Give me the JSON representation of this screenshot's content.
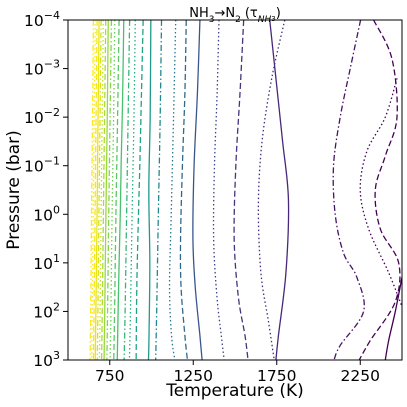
{
  "chart_data": {
    "type": "line",
    "title": "NH3→N2 (τNH3)",
    "title_parts": {
      "a": "NH",
      "a_sub": "3",
      "arrow": "→",
      "b": "N",
      "b_sub": "2",
      "paren_open": "(τ",
      "tau_sub": "NH",
      "tau_sub_sub": "3",
      "paren_close": ")"
    },
    "xlabel": "Temperature (K)",
    "ylabel": "Pressure (bar)",
    "xlim": [
      500,
      2500
    ],
    "ylim_log10": [
      3,
      -4
    ],
    "y_scale": "log",
    "y_inverted": true,
    "grid": false,
    "x_tick_values": [
      750,
      1250,
      1750,
      2250
    ],
    "x_tick_labels": [
      "750",
      "1250",
      "1750",
      "2250"
    ],
    "y_ticks": [
      {
        "base": "10",
        "exp": "−4",
        "log": -4
      },
      {
        "base": "10",
        "exp": "−3",
        "log": -3
      },
      {
        "base": "10",
        "exp": "−2",
        "log": -2
      },
      {
        "base": "10",
        "exp": "−1",
        "log": -1
      },
      {
        "base": "10",
        "exp": "0",
        "log": 0
      },
      {
        "base": "10",
        "exp": "1",
        "log": 1
      },
      {
        "base": "10",
        "exp": "2",
        "log": 2
      },
      {
        "base": "10",
        "exp": "3",
        "log": 3
      }
    ],
    "series": [
      {
        "color": "#fde725",
        "dash": "dashdot",
        "points": [
          [
            652,
            -4
          ],
          [
            647,
            -2
          ],
          [
            641,
            0
          ],
          [
            636,
            2
          ],
          [
            632,
            3
          ]
        ]
      },
      {
        "color": "#fde725",
        "dash": "dotted",
        "points": [
          [
            663,
            -4
          ],
          [
            657,
            -2
          ],
          [
            651,
            0
          ],
          [
            645,
            2
          ],
          [
            641,
            3
          ]
        ]
      },
      {
        "color": "#f6e620",
        "dash": "dashed",
        "points": [
          [
            674,
            -4
          ],
          [
            668,
            -2
          ],
          [
            662,
            0
          ],
          [
            656,
            2
          ],
          [
            652,
            3
          ]
        ]
      },
      {
        "color": "#e8e419",
        "dash": "solid",
        "points": [
          [
            686,
            -4
          ],
          [
            680,
            -2
          ],
          [
            674,
            0
          ],
          [
            667,
            2
          ],
          [
            663,
            3
          ]
        ]
      },
      {
        "color": "#d5e21a",
        "dash": "dashdot",
        "points": [
          [
            698,
            -4
          ],
          [
            692,
            -2
          ],
          [
            685,
            0
          ],
          [
            679,
            2
          ],
          [
            675,
            3
          ]
        ]
      },
      {
        "color": "#c0df25",
        "dash": "dotted",
        "points": [
          [
            711,
            -4
          ],
          [
            705,
            -2
          ],
          [
            698,
            0
          ],
          [
            692,
            2
          ],
          [
            688,
            3
          ]
        ]
      },
      {
        "color": "#addc30",
        "dash": "dashed",
        "points": [
          [
            726,
            -4
          ],
          [
            719,
            -2
          ],
          [
            712,
            0
          ],
          [
            705,
            2
          ],
          [
            701,
            3
          ]
        ]
      },
      {
        "color": "#98d83e",
        "dash": "solid",
        "points": [
          [
            741,
            -4
          ],
          [
            735,
            -2
          ],
          [
            727,
            0
          ],
          [
            720,
            2
          ],
          [
            716,
            3
          ]
        ]
      },
      {
        "color": "#84d44b",
        "dash": "dashdot",
        "points": [
          [
            760,
            -4
          ],
          [
            752,
            -2
          ],
          [
            744,
            0
          ],
          [
            737,
            2
          ],
          [
            733,
            3
          ]
        ]
      },
      {
        "color": "#6ece58",
        "dash": "dotted",
        "points": [
          [
            780,
            -4
          ],
          [
            773,
            -2
          ],
          [
            764,
            0
          ],
          [
            757,
            2
          ],
          [
            752,
            3
          ]
        ]
      },
      {
        "color": "#5ac864",
        "dash": "dashed",
        "points": [
          [
            806,
            -4
          ],
          [
            797,
            -2
          ],
          [
            787,
            0
          ],
          [
            779,
            2
          ],
          [
            774,
            3
          ]
        ]
      },
      {
        "color": "#48c16e",
        "dash": "solid",
        "points": [
          [
            834,
            -4
          ],
          [
            826,
            -2.2
          ],
          [
            818,
            -1
          ],
          [
            813,
            0
          ],
          [
            806,
            1
          ],
          [
            800,
            2
          ],
          [
            795,
            3
          ]
        ]
      },
      {
        "color": "#35b779",
        "dash": "dashdot",
        "points": [
          [
            869,
            -4
          ],
          [
            860,
            -2
          ],
          [
            851,
            0
          ],
          [
            842,
            2
          ],
          [
            836,
            3
          ]
        ]
      },
      {
        "color": "#28ae80",
        "dash": "dotted",
        "points": [
          [
            903,
            -4
          ],
          [
            895,
            -2
          ],
          [
            884,
            0
          ],
          [
            874,
            2
          ],
          [
            868,
            3
          ]
        ]
      },
      {
        "color": "#20a486",
        "dash": "dashed",
        "points": [
          [
            950,
            -4
          ],
          [
            940,
            -2.5
          ],
          [
            930,
            -1
          ],
          [
            922,
            0
          ],
          [
            912,
            1.5
          ],
          [
            908,
            3
          ]
        ]
      },
      {
        "color": "#1f9a8a",
        "dash": "solid",
        "points": [
          [
            996,
            -4
          ],
          [
            992,
            -2
          ],
          [
            984,
            -0.5
          ],
          [
            990,
            1
          ],
          [
            985,
            2.5
          ],
          [
            982,
            3
          ]
        ]
      },
      {
        "color": "#23898e",
        "dash": "dashdot",
        "points": [
          [
            1060,
            -4
          ],
          [
            1052,
            -2
          ],
          [
            1041,
            0
          ],
          [
            1031,
            2
          ],
          [
            1025,
            3
          ]
        ]
      },
      {
        "color": "#2a788e",
        "dash": "dotted",
        "points": [
          [
            1145,
            -4
          ],
          [
            1132,
            -2
          ],
          [
            1118,
            0
          ],
          [
            1108,
            1.5
          ],
          [
            1120,
            2.5
          ],
          [
            1140,
            3
          ]
        ]
      },
      {
        "color": "#31688e",
        "dash": "dashed",
        "points": [
          [
            1208,
            -4
          ],
          [
            1200,
            -2.5
          ],
          [
            1185,
            -1
          ],
          [
            1174,
            0.5
          ],
          [
            1177,
            1.5
          ],
          [
            1200,
            2.5
          ],
          [
            1215,
            3
          ]
        ]
      },
      {
        "color": "#39568c",
        "dash": "solid",
        "points": [
          [
            1290,
            -4
          ],
          [
            1275,
            -2.5
          ],
          [
            1255,
            -1
          ],
          [
            1248,
            0.5
          ],
          [
            1262,
            1.5
          ],
          [
            1290,
            2.5
          ],
          [
            1303,
            3
          ]
        ]
      },
      {
        "color": "#414487",
        "dash": "dotted",
        "points": [
          [
            1404,
            -4
          ],
          [
            1393,
            -2.5
          ],
          [
            1377,
            -1
          ],
          [
            1372,
            0.5
          ],
          [
            1392,
            1.7
          ],
          [
            1418,
            2.5
          ],
          [
            1435,
            3
          ]
        ]
      },
      {
        "color": "#46327e",
        "dash": "dashed",
        "points": [
          [
            1552,
            -4
          ],
          [
            1530,
            -2.5
          ],
          [
            1505,
            -1
          ],
          [
            1495,
            0.5
          ],
          [
            1520,
            1.7
          ],
          [
            1560,
            2.5
          ],
          [
            1578,
            3
          ]
        ]
      },
      {
        "color": "#472d7b",
        "dash": "dotted",
        "points": [
          [
            1798,
            -4
          ],
          [
            1720,
            -2.8
          ],
          [
            1662,
            -1.5
          ],
          [
            1640,
            -0.2
          ],
          [
            1655,
            1.2
          ],
          [
            1700,
            2.2
          ],
          [
            1735,
            3
          ]
        ]
      },
      {
        "color": "#482878",
        "dash": "solid",
        "points": [
          [
            1708,
            -4
          ],
          [
            1745,
            -2.8
          ],
          [
            1785,
            -1.5
          ],
          [
            1820,
            -0.3
          ],
          [
            1805,
            1.2
          ],
          [
            1760,
            2.5
          ],
          [
            1745,
            3
          ]
        ]
      },
      {
        "color": "#471365",
        "dash": "dashdot",
        "points": [
          [
            2252,
            -4
          ],
          [
            2190,
            -3
          ],
          [
            2130,
            -2
          ],
          [
            2090,
            -1
          ],
          [
            2100,
            0
          ],
          [
            2150,
            0.8
          ],
          [
            2230,
            1.3
          ],
          [
            2270,
            2
          ],
          [
            2130,
            2.7
          ],
          [
            2093,
            3
          ]
        ]
      },
      {
        "color": "#440154",
        "dash": "dashed",
        "points": [
          [
            2330,
            -4
          ],
          [
            2440,
            -3.2
          ],
          [
            2470,
            -2
          ],
          [
            2400,
            -1.2
          ],
          [
            2340,
            -0.5
          ],
          [
            2370,
            0.3
          ],
          [
            2480,
            1
          ],
          [
            2460,
            1.8
          ],
          [
            2310,
            2.6
          ],
          [
            2244,
            3
          ]
        ]
      },
      {
        "color": "#440154",
        "dash": "dotted",
        "points": [
          [
            2470,
            -2.8
          ],
          [
            2400,
            -2
          ],
          [
            2290,
            -1.3
          ],
          [
            2250,
            -0.5
          ],
          [
            2300,
            0.3
          ],
          [
            2420,
            1.2
          ],
          [
            2500,
            1.9
          ]
        ]
      },
      {
        "color": "#440154",
        "dash": "solid",
        "points": [
          [
            2500,
            1.3
          ],
          [
            2460,
            2
          ],
          [
            2420,
            2.6
          ],
          [
            2400,
            3
          ]
        ]
      }
    ]
  }
}
